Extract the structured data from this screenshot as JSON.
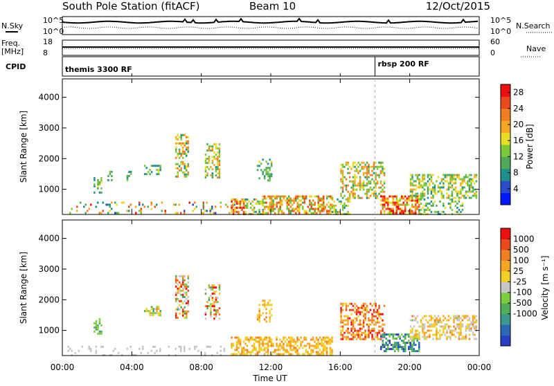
{
  "header": {
    "title": "South Pole Station (fitACF)",
    "beam": "Beam 10",
    "date": "12/Oct/2015"
  },
  "noise_panel": {
    "left_label": "N.Sky",
    "right_label": "N.Search",
    "left_ticks": [
      "10^5",
      "10^0"
    ],
    "right_ticks": [
      "10^5",
      "10^0"
    ]
  },
  "freq_panel": {
    "left_label_1": "Freq.",
    "left_label_2": "[MHz]",
    "right_label": "Nave",
    "left_ticks": [
      "18",
      "8"
    ],
    "right_ticks": [
      "60",
      "0"
    ]
  },
  "cpid_panel": {
    "label": "CPID",
    "entries": [
      {
        "time_hours": 0.0,
        "text": "themis 3300 RF"
      },
      {
        "time_hours": 18.0,
        "text": "rbsp 200 RF"
      }
    ]
  },
  "time_axis": {
    "label": "Time UT",
    "ticks": [
      "00:00",
      "04:00",
      "08:00",
      "12:00",
      "16:00",
      "20:00",
      "00:00"
    ],
    "tick_hours": [
      0,
      4,
      8,
      12,
      16,
      20,
      24
    ]
  },
  "range_axis": {
    "label": "Slant Range [km]",
    "ticks": [
      "1000",
      "2000",
      "3000",
      "4000"
    ],
    "tick_values": [
      1000,
      2000,
      3000,
      4000
    ]
  },
  "power_colorbar": {
    "label": "Power [dB]",
    "ticks": [
      "4",
      "8",
      "12",
      "16",
      "20",
      "24",
      "28"
    ],
    "colors": [
      "#0018ff",
      "#2a4cc8",
      "#1f8f8c",
      "#4fa95a",
      "#7cc63a",
      "#e8dc26",
      "#f5a623",
      "#f07f22",
      "#ec4a1d",
      "#ee1010"
    ]
  },
  "velocity_colorbar": {
    "label": "Velocity [m s⁻¹]",
    "ticks": [
      "1000",
      "500",
      "100",
      "25",
      "-25",
      "-100",
      "-500",
      "-1000"
    ],
    "colors": [
      "#2a3fc4",
      "#2c69b5",
      "#3a9a8e",
      "#4fae57",
      "#7dcb3e",
      "#c6c6c6",
      "#f2d023",
      "#f5a623",
      "#f07f22",
      "#ec4a1d",
      "#ee1010"
    ]
  },
  "chart_data": {
    "type": "heatmap",
    "xlabel": "Time UT",
    "ylabel": "Slant Range [km]",
    "xlim_hours": [
      0,
      24
    ],
    "ylim_km": [
      180,
      4600
    ],
    "panels": [
      {
        "name": "Power",
        "unit": "dB",
        "clim": [
          0,
          30
        ],
        "patches": [
          {
            "t0": 0.3,
            "t1": 10.0,
            "r0": 200,
            "r1": 600,
            "v0": 4,
            "v1": 28,
            "density": 0.16
          },
          {
            "t0": 1.8,
            "t1": 2.2,
            "r0": 900,
            "r1": 1400,
            "v0": 6,
            "v1": 16,
            "density": 0.55
          },
          {
            "t0": 2.6,
            "t1": 2.8,
            "r0": 1300,
            "r1": 1600,
            "v0": 6,
            "v1": 14,
            "density": 0.5
          },
          {
            "t0": 3.7,
            "t1": 3.9,
            "r0": 1300,
            "r1": 1600,
            "v0": 6,
            "v1": 14,
            "density": 0.5
          },
          {
            "t0": 4.7,
            "t1": 5.6,
            "r0": 1500,
            "r1": 1800,
            "v0": 6,
            "v1": 18,
            "density": 0.5
          },
          {
            "t0": 6.5,
            "t1": 7.2,
            "r0": 1400,
            "r1": 2800,
            "v0": 8,
            "v1": 24,
            "density": 0.45
          },
          {
            "t0": 8.2,
            "t1": 9.0,
            "r0": 1400,
            "r1": 2500,
            "v0": 8,
            "v1": 22,
            "density": 0.45
          },
          {
            "t0": 9.7,
            "t1": 10.5,
            "r0": 200,
            "r1": 700,
            "v0": 16,
            "v1": 30,
            "density": 0.7
          },
          {
            "t0": 10.5,
            "t1": 11.5,
            "r0": 200,
            "r1": 700,
            "v0": 8,
            "v1": 20,
            "density": 0.45
          },
          {
            "t0": 11.2,
            "t1": 12.0,
            "r0": 1300,
            "r1": 2000,
            "v0": 6,
            "v1": 16,
            "density": 0.45
          },
          {
            "t0": 11.5,
            "t1": 15.5,
            "r0": 200,
            "r1": 800,
            "v0": 10,
            "v1": 26,
            "density": 0.6
          },
          {
            "t0": 15.5,
            "t1": 16.5,
            "r0": 200,
            "r1": 700,
            "v0": 6,
            "v1": 20,
            "density": 0.45
          },
          {
            "t0": 16.0,
            "t1": 18.5,
            "r0": 700,
            "r1": 1900,
            "v0": 8,
            "v1": 24,
            "density": 0.5
          },
          {
            "t0": 18.3,
            "t1": 20.5,
            "r0": 200,
            "r1": 800,
            "v0": 14,
            "v1": 30,
            "density": 0.65
          },
          {
            "t0": 20.0,
            "t1": 23.8,
            "r0": 700,
            "r1": 1500,
            "v0": 8,
            "v1": 20,
            "density": 0.5
          },
          {
            "t0": 20.5,
            "t1": 23.0,
            "r0": 200,
            "r1": 700,
            "v0": 6,
            "v1": 18,
            "density": 0.35
          }
        ]
      },
      {
        "name": "Velocity",
        "unit": "m s⁻¹",
        "clim": [
          -1000,
          1000
        ],
        "patches": [
          {
            "t0": 0.3,
            "t1": 9.5,
            "r0": 200,
            "r1": 500,
            "v0": -30,
            "v1": 30,
            "density": 0.12
          },
          {
            "t0": 1.8,
            "t1": 2.2,
            "r0": 900,
            "r1": 1400,
            "v0": -500,
            "v1": -100,
            "density": 0.55
          },
          {
            "t0": 4.7,
            "t1": 5.6,
            "r0": 1500,
            "r1": 1800,
            "v0": -500,
            "v1": 500,
            "density": 0.45
          },
          {
            "t0": 6.5,
            "t1": 7.2,
            "r0": 1400,
            "r1": 2800,
            "v0": -500,
            "v1": 1000,
            "density": 0.45
          },
          {
            "t0": 8.2,
            "t1": 9.0,
            "r0": 1400,
            "r1": 2500,
            "v0": -500,
            "v1": 1000,
            "density": 0.45
          },
          {
            "t0": 9.7,
            "t1": 15.5,
            "r0": 200,
            "r1": 800,
            "v0": 100,
            "v1": 500,
            "density": 0.55
          },
          {
            "t0": 11.2,
            "t1": 12.0,
            "r0": 1300,
            "r1": 2000,
            "v0": 100,
            "v1": 500,
            "density": 0.45
          },
          {
            "t0": 16.0,
            "t1": 18.5,
            "r0": 700,
            "r1": 1900,
            "v0": 100,
            "v1": 1000,
            "density": 0.5
          },
          {
            "t0": 18.3,
            "t1": 20.5,
            "r0": 300,
            "r1": 900,
            "v0": -1000,
            "v1": -100,
            "density": 0.6
          },
          {
            "t0": 20.0,
            "t1": 23.8,
            "r0": 700,
            "r1": 1500,
            "v0": -100,
            "v1": 500,
            "density": 0.5
          }
        ]
      }
    ]
  }
}
